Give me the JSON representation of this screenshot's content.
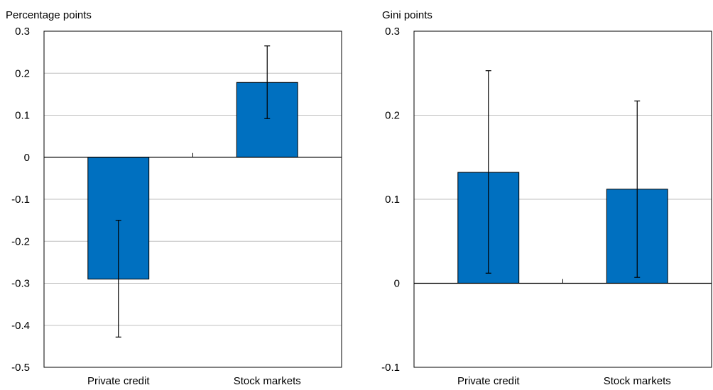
{
  "chart_data": [
    {
      "type": "bar",
      "title": "",
      "ylabel": "Percentage points",
      "xlabel": "",
      "categories": [
        "Private credit",
        "Stock markets"
      ],
      "values": [
        -0.29,
        0.178
      ],
      "error_low": [
        -0.428,
        0.092
      ],
      "error_high": [
        -0.15,
        0.265
      ],
      "ylim": [
        -0.5,
        0.3
      ],
      "yticks": [
        0.3,
        0.2,
        0.1,
        0,
        -0.1,
        -0.2,
        -0.3,
        -0.4,
        -0.5
      ],
      "ytick_labels": [
        "0.3",
        "0.2",
        "0.1",
        "0",
        "-0.1",
        "-0.2",
        "-0.3",
        "-0.4",
        "-0.5"
      ],
      "grid": true,
      "bar_color": "#0070C0",
      "grid_color": "#BFBFBF"
    },
    {
      "type": "bar",
      "title": "",
      "ylabel": "Gini points",
      "xlabel": "",
      "categories": [
        "Private credit",
        "Stock markets"
      ],
      "values": [
        0.132,
        0.112
      ],
      "error_low": [
        0.012,
        0.007
      ],
      "error_high": [
        0.253,
        0.217
      ],
      "ylim": [
        -0.1,
        0.3
      ],
      "yticks": [
        0.3,
        0.2,
        0.1,
        0,
        -0.1
      ],
      "ytick_labels": [
        "0.3",
        "0.2",
        "0.1",
        "0",
        "-0.1"
      ],
      "grid": true,
      "bar_color": "#0070C0",
      "grid_color": "#BFBFBF"
    }
  ]
}
